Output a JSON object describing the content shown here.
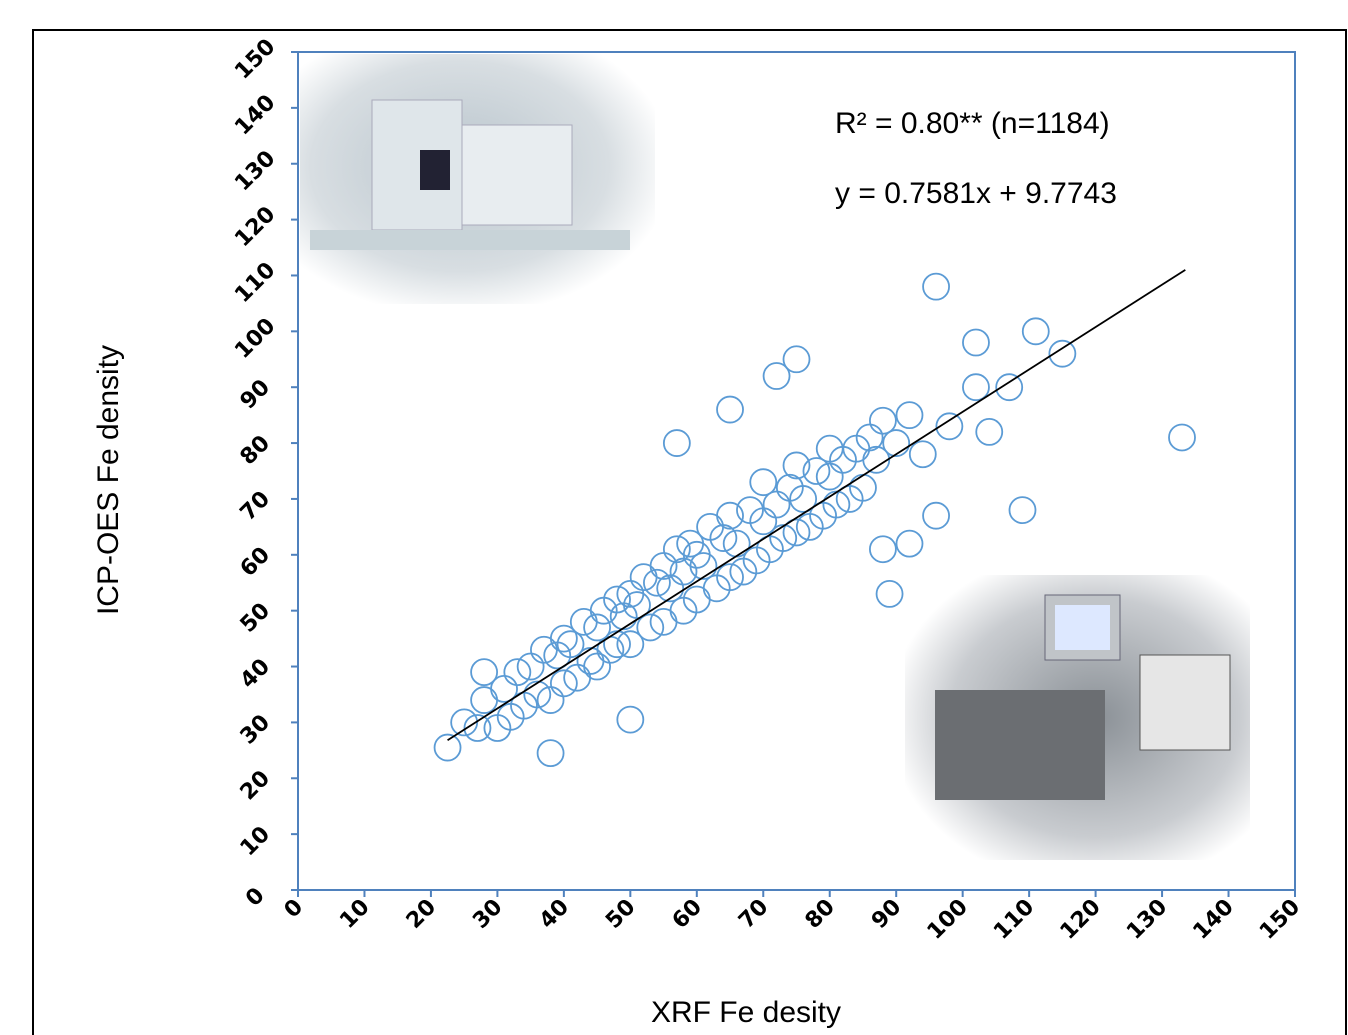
{
  "chart_data": {
    "type": "scatter",
    "title_annotations": [
      "R² = 0.80** (n=1184)",
      "y = 0.7581x + 9.7743"
    ],
    "x_label": "XRF Fe desity",
    "y_label": "ICP-OES Fe density",
    "xlim": [
      0,
      150
    ],
    "ylim": [
      0,
      150
    ],
    "xticks": [
      0,
      10,
      20,
      30,
      40,
      50,
      60,
      70,
      80,
      90,
      100,
      110,
      120,
      130,
      140,
      150
    ],
    "yticks": [
      0,
      10,
      20,
      30,
      40,
      50,
      60,
      70,
      80,
      90,
      100,
      110,
      120,
      130,
      140,
      150
    ],
    "color": "#5b9bd5",
    "x": [
      25,
      28,
      30,
      31,
      32,
      33,
      34,
      35,
      36,
      37,
      38,
      39,
      40,
      40,
      41,
      42,
      43,
      44,
      45,
      45,
      46,
      47,
      48,
      48,
      49,
      50,
      50,
      51,
      52,
      53,
      54,
      55,
      55,
      56,
      57,
      58,
      58,
      59,
      60,
      60,
      61,
      62,
      63,
      64,
      65,
      65,
      66,
      67,
      68,
      69,
      70,
      70,
      71,
      72,
      73,
      74,
      75,
      75,
      76,
      77,
      78,
      79,
      80,
      80,
      81,
      82,
      83,
      84,
      85,
      86,
      87,
      88,
      90,
      92,
      94,
      22.5,
      27,
      28,
      38,
      50,
      57,
      65,
      72,
      75,
      96,
      102,
      111,
      115,
      133,
      109,
      96,
      89,
      88,
      92,
      107,
      104,
      102,
      98
    ],
    "y": [
      30,
      34,
      29,
      36,
      31,
      39,
      33,
      40,
      35,
      43,
      34,
      42,
      37,
      45,
      44,
      38,
      48,
      41,
      47,
      40,
      50,
      43,
      52,
      44,
      49,
      53,
      44,
      51,
      56,
      47,
      55,
      58,
      48,
      54,
      61,
      50,
      57,
      62,
      52,
      60,
      58,
      65,
      54,
      63,
      56,
      67,
      62,
      57,
      68,
      59,
      66,
      73,
      61,
      69,
      63,
      72,
      64,
      76,
      70,
      65,
      75,
      67,
      74,
      79,
      69,
      77,
      70,
      79,
      72,
      81,
      77,
      84,
      80,
      85,
      78,
      25.5,
      29,
      39,
      24.5,
      30.5,
      80,
      86,
      92,
      95,
      108,
      98,
      100,
      96,
      81,
      68,
      67,
      53,
      61,
      62,
      90,
      82,
      90,
      83
    ],
    "trendline": {
      "x": [
        22.5,
        133.5
      ],
      "y": [
        26.8,
        111
      ]
    }
  }
}
